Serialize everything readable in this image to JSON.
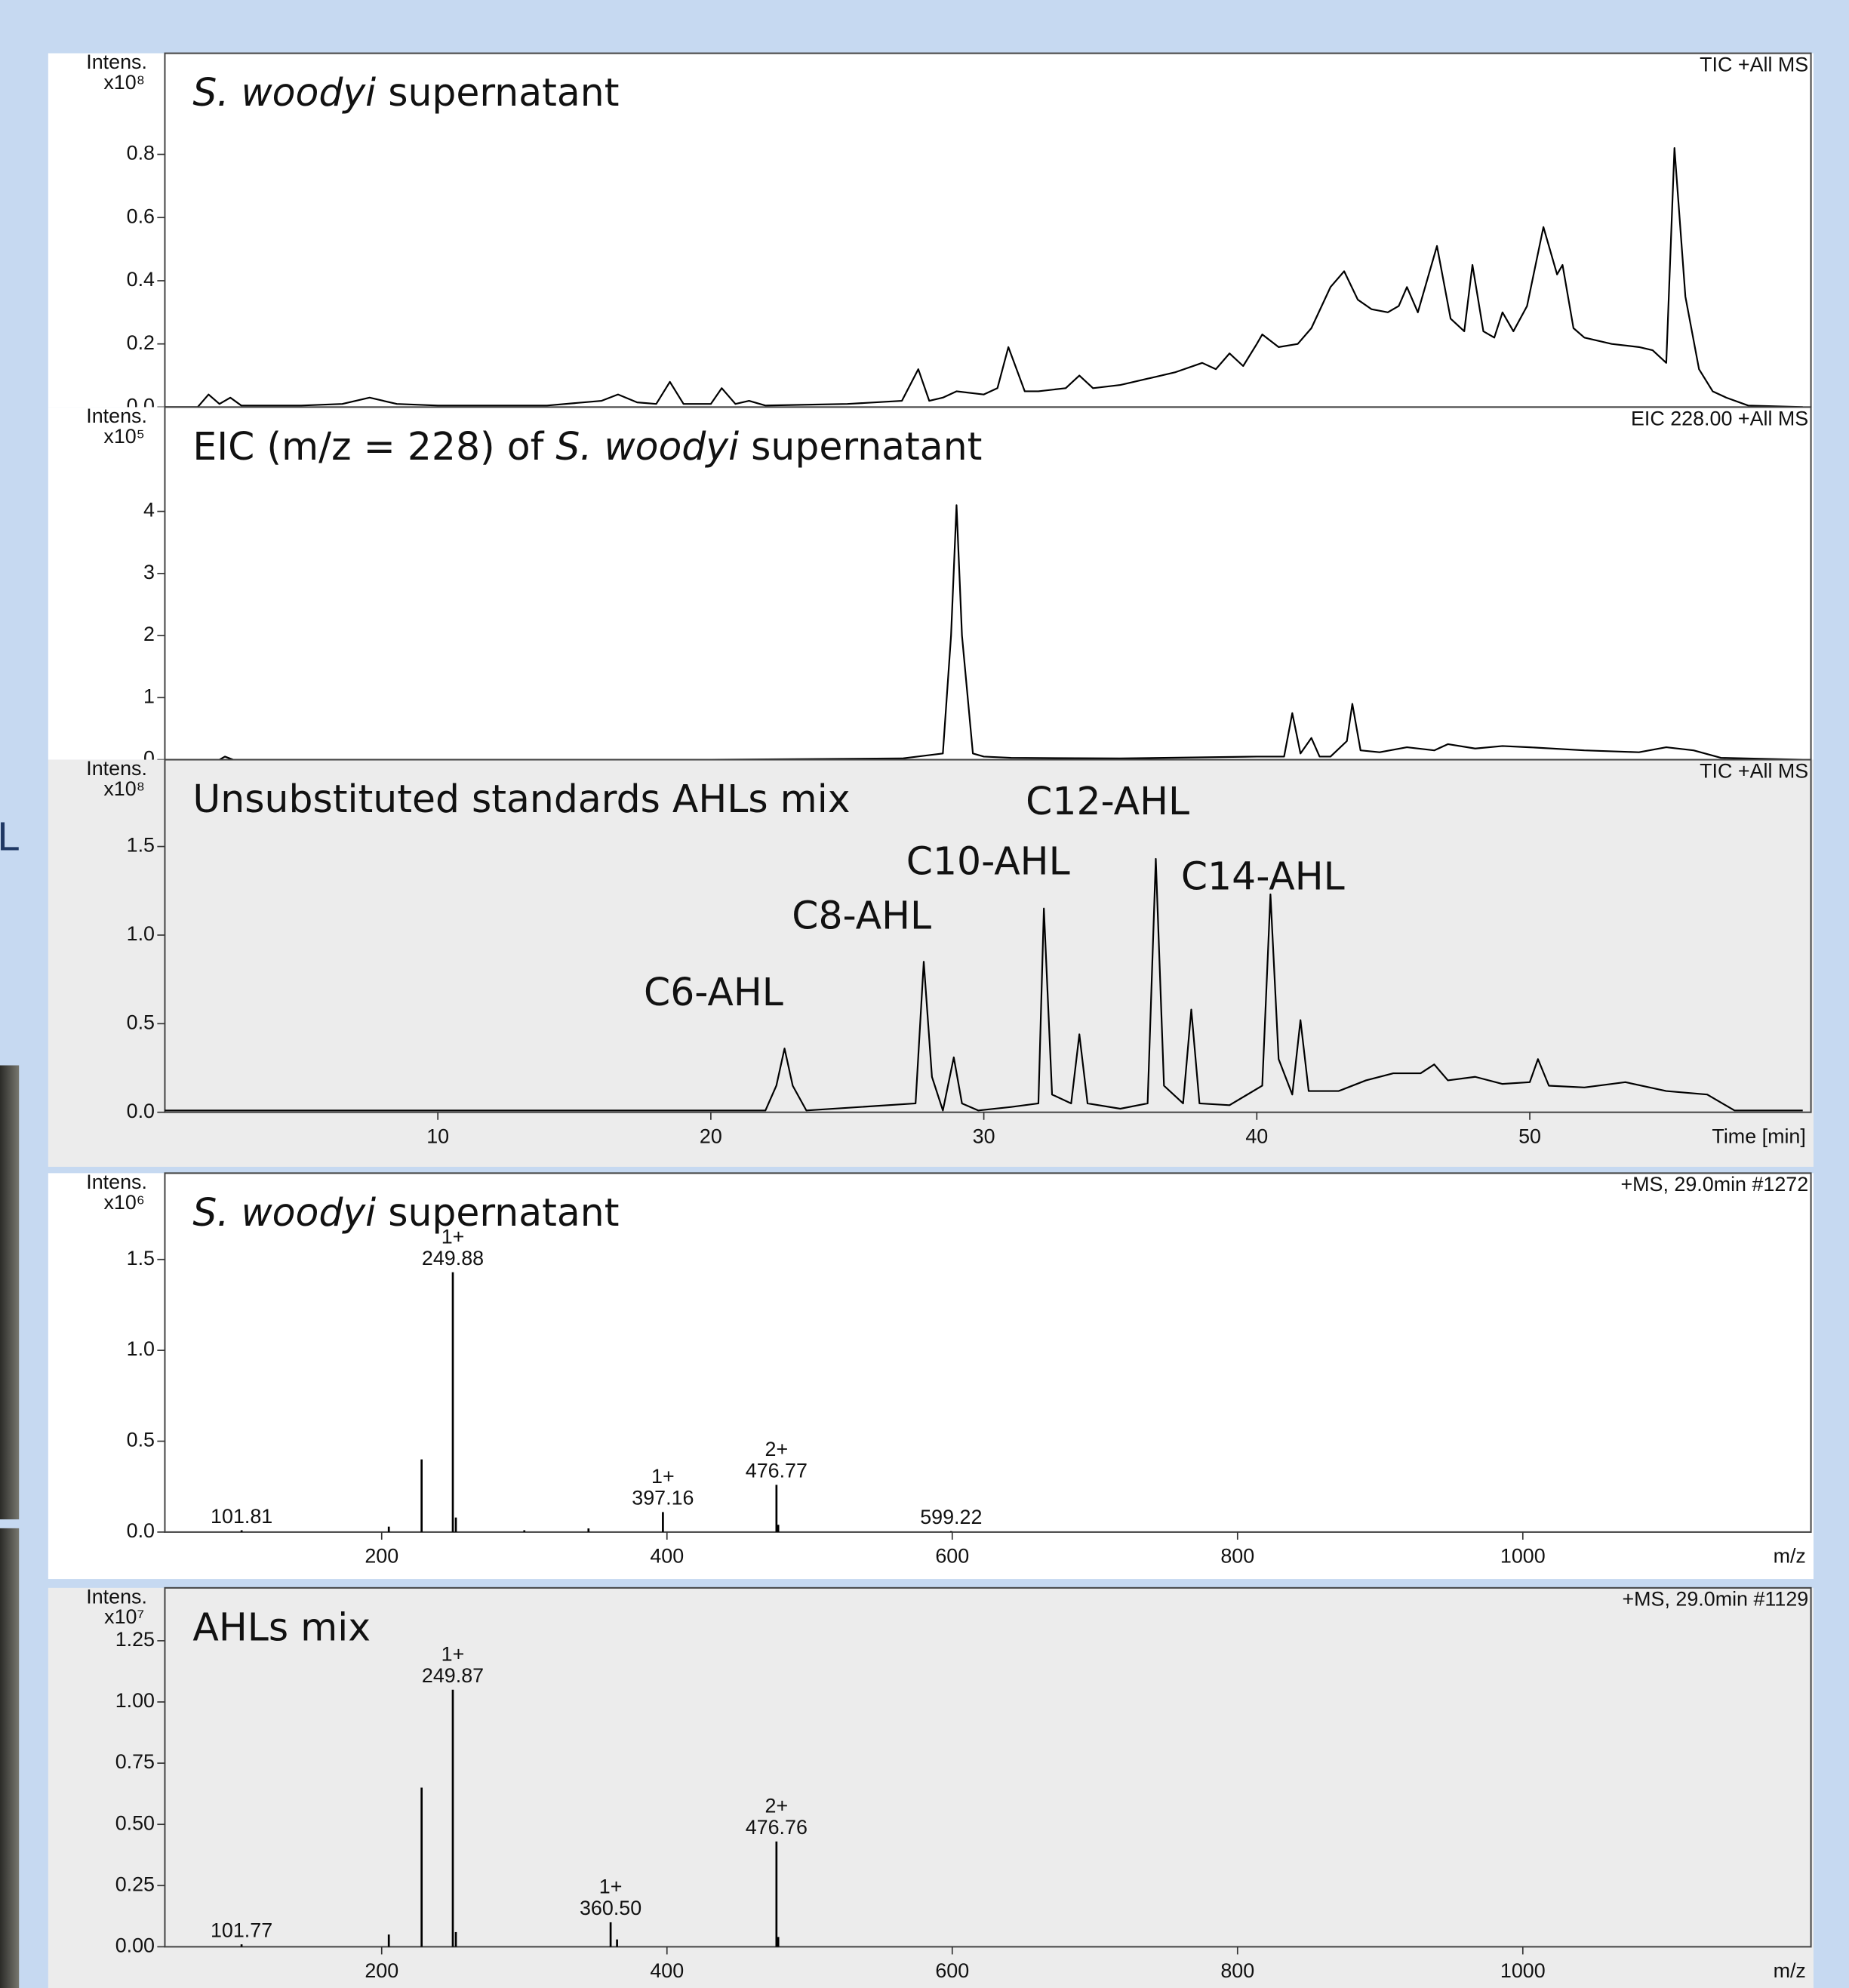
{
  "side_text": "L",
  "chart_data": [
    {
      "type": "line",
      "title": [
        {
          "text": "S. woodyi",
          "italic": true
        },
        {
          "text": " supernatant"
        }
      ],
      "corner_label": "TIC +All MS",
      "y_label": "Intens.",
      "y_unit": "x10⁸",
      "xlim": [
        0,
        60.3
      ],
      "ylim": [
        0,
        1.12
      ],
      "yticks": [
        {
          "value": 0,
          "label": "0.0"
        },
        0.2,
        0.4,
        0.6,
        0.8
      ],
      "color": "#000000",
      "background": "#ffffff",
      "x": [
        0,
        1.2,
        1.6,
        2,
        2.4,
        2.8,
        3.5,
        5,
        6.5,
        7.5,
        8.5,
        10,
        14,
        16,
        16.6,
        17.3,
        18,
        18.5,
        19,
        20,
        20.4,
        20.9,
        21.4,
        22,
        25,
        27,
        27.6,
        28,
        28.5,
        29,
        30,
        30.5,
        30.9,
        31.5,
        32,
        33,
        33.5,
        34,
        35,
        36,
        37,
        38,
        38.5,
        39,
        39.5,
        40,
        40.2,
        40.8,
        41.5,
        42,
        42.7,
        43.2,
        43.7,
        44.2,
        44.8,
        45.2,
        45.5,
        45.9,
        46.1,
        46.6,
        47.1,
        47.6,
        47.9,
        48.3,
        48.7,
        49,
        49.4,
        49.9,
        50.5,
        51,
        51.2,
        51.6,
        52,
        53,
        54,
        54.5,
        55,
        55.3,
        55.7,
        56.2,
        56.7,
        57.2,
        58,
        60
      ],
      "values": [
        0,
        0,
        0.04,
        0.01,
        0.03,
        0.005,
        0.005,
        0.005,
        0.01,
        0.03,
        0.01,
        0.005,
        0.005,
        0.02,
        0.04,
        0.015,
        0.01,
        0.08,
        0.01,
        0.01,
        0.06,
        0.01,
        0.02,
        0.005,
        0.01,
        0.02,
        0.12,
        0.02,
        0.03,
        0.05,
        0.04,
        0.06,
        0.19,
        0.05,
        0.05,
        0.06,
        0.1,
        0.06,
        0.07,
        0.09,
        0.11,
        0.14,
        0.12,
        0.17,
        0.13,
        0.2,
        0.23,
        0.19,
        0.2,
        0.25,
        0.38,
        0.43,
        0.34,
        0.31,
        0.3,
        0.32,
        0.38,
        0.3,
        0.36,
        0.51,
        0.28,
        0.24,
        0.45,
        0.24,
        0.22,
        0.3,
        0.24,
        0.32,
        0.57,
        0.42,
        0.45,
        0.25,
        0.22,
        0.2,
        0.19,
        0.18,
        0.14,
        0.82,
        0.35,
        0.12,
        0.05,
        0.03,
        0.005,
        0
      ]
    },
    {
      "type": "line",
      "title": [
        {
          "text": "EIC (m/z = 228) of "
        },
        {
          "text": "S. woodyi",
          "italic": true
        },
        {
          "text": "  supernatant"
        }
      ],
      "corner_label": "EIC 228.00 +All MS",
      "y_label": "Intens.",
      "y_unit": "x10⁵",
      "xlim": [
        0,
        60.3
      ],
      "ylim": [
        0,
        5.68
      ],
      "yticks": [
        0,
        1,
        2,
        3,
        4
      ],
      "color": "#000000",
      "background": "#ffffff",
      "x": [
        0,
        2,
        2.2,
        2.5,
        10,
        20,
        27,
        28.5,
        28.8,
        29,
        29.2,
        29.6,
        30,
        31,
        35,
        40,
        41,
        41.3,
        41.6,
        42,
        42.3,
        42.7,
        43.3,
        43.5,
        43.8,
        44.5,
        45.5,
        46.5,
        47,
        48,
        49,
        50,
        52,
        54,
        55,
        56,
        57,
        60
      ],
      "values": [
        0,
        0,
        0.05,
        0,
        0,
        0,
        0.02,
        0.1,
        2,
        4.1,
        2,
        0.1,
        0.05,
        0.03,
        0.02,
        0.05,
        0.05,
        0.75,
        0.1,
        0.35,
        0.05,
        0.05,
        0.3,
        0.9,
        0.15,
        0.12,
        0.2,
        0.15,
        0.25,
        0.18,
        0.22,
        0.2,
        0.15,
        0.12,
        0.2,
        0.15,
        0.03,
        0
      ]
    },
    {
      "type": "line",
      "title": [
        {
          "text": "Unsubstituted standards AHLs mix"
        }
      ],
      "corner_label": "TIC +All MS",
      "y_label": "Intens.",
      "y_unit": "x10⁸",
      "x_label": "Time [min]",
      "xlim": [
        0,
        60.3
      ],
      "ylim": [
        0,
        1.99
      ],
      "xticks": [
        10,
        20,
        30,
        40,
        50
      ],
      "yticks": [
        {
          "value": 0,
          "label": "0.0"
        },
        0.5,
        {
          "value": 1,
          "label": "1.0"
        },
        1.5
      ],
      "color": "#000000",
      "background": "#ececec",
      "x": [
        0,
        2,
        10,
        17,
        22,
        22.4,
        22.7,
        23,
        23.5,
        27.5,
        27.8,
        28.1,
        28.5,
        28.9,
        29.2,
        29.8,
        31,
        32,
        32.2,
        32.5,
        33.2,
        33.5,
        33.8,
        35,
        36,
        36.3,
        36.6,
        37.3,
        37.6,
        37.9,
        39,
        40.2,
        40.5,
        40.8,
        41.3,
        41.6,
        41.9,
        43,
        44,
        45,
        46,
        46.5,
        47,
        48,
        49,
        50,
        50.3,
        50.7,
        52,
        53.5,
        55,
        56.5,
        57.5,
        60
      ],
      "values": [
        0.01,
        0.01,
        0.01,
        0.01,
        0.01,
        0.15,
        0.36,
        0.15,
        0.01,
        0.05,
        0.85,
        0.2,
        0.01,
        0.31,
        0.05,
        0.01,
        0.03,
        0.05,
        1.15,
        0.1,
        0.05,
        0.44,
        0.05,
        0.02,
        0.05,
        1.43,
        0.15,
        0.05,
        0.58,
        0.05,
        0.04,
        0.15,
        1.23,
        0.3,
        0.1,
        0.52,
        0.12,
        0.12,
        0.18,
        0.22,
        0.22,
        0.27,
        0.18,
        0.2,
        0.16,
        0.17,
        0.3,
        0.15,
        0.14,
        0.17,
        0.12,
        0.1,
        0.01,
        0.01
      ],
      "annotations": [
        {
          "text": "C6-AHL",
          "x": 22.7
        },
        {
          "text": "C8-AHL",
          "x": 27.8
        },
        {
          "text": "C10-AHL",
          "x": 32.2
        },
        {
          "text": "C12-AHL",
          "x": 36.3
        },
        {
          "text": "C14-AHL",
          "x": 40.5
        }
      ]
    },
    {
      "type": "spectrum",
      "title": [
        {
          "text": "S. woodyi",
          "italic": true
        },
        {
          "text": " supernatant"
        }
      ],
      "corner_label": "+MS, 29.0min #1272",
      "y_label": "Intens.",
      "y_unit": "x10⁶",
      "x_label": "m/z",
      "xlim": [
        48,
        1202
      ],
      "ylim": [
        0,
        1.975
      ],
      "xticks": [
        200,
        400,
        600,
        800,
        1000
      ],
      "yticks": [
        {
          "value": 0,
          "label": "0.0"
        },
        0.5,
        {
          "value": 1,
          "label": "1.0"
        },
        1.5
      ],
      "color": "#000000",
      "background": "#ffffff",
      "x": [
        101.81,
        205,
        228,
        249.88,
        252,
        300,
        345,
        397.16,
        476.77,
        478,
        599.22
      ],
      "values": [
        0.01,
        0.03,
        0.4,
        1.43,
        0.08,
        0.01,
        0.02,
        0.11,
        0.26,
        0.04,
        0.005
      ],
      "annotations": [
        {
          "x": 101.81,
          "label": "101.81"
        },
        {
          "x": 249.88,
          "label": "249.88",
          "charge": "1+"
        },
        {
          "x": 397.16,
          "label": "397.16",
          "charge": "1+"
        },
        {
          "x": 476.77,
          "label": "476.77",
          "charge": "2+"
        },
        {
          "x": 599.22,
          "label": "599.22"
        }
      ]
    },
    {
      "type": "spectrum",
      "title": [
        {
          "text": "AHLs mix"
        }
      ],
      "corner_label": "+MS, 29.0min #1129",
      "y_label": "Intens.",
      "y_unit": "x10⁷",
      "x_label": "m/z",
      "xlim": [
        48,
        1202
      ],
      "ylim": [
        0,
        1.466
      ],
      "xticks": [
        200,
        400,
        600,
        800,
        1000
      ],
      "yticks": [
        {
          "value": 0,
          "label": "0.00"
        },
        0.25,
        {
          "value": 0.5,
          "label": "0.50"
        },
        0.75,
        {
          "value": 1,
          "label": "1.00"
        },
        1.25
      ],
      "color": "#000000",
      "background": "#ececec",
      "x": [
        101.77,
        205,
        228,
        249.87,
        252,
        360.5,
        365,
        476.76,
        478
      ],
      "values": [
        0.01,
        0.05,
        0.65,
        1.05,
        0.06,
        0.1,
        0.03,
        0.43,
        0.04
      ],
      "annotations": [
        {
          "x": 101.77,
          "label": "101.77"
        },
        {
          "x": 249.87,
          "label": "249.87",
          "charge": "1+"
        },
        {
          "x": 360.5,
          "label": "360.50",
          "charge": "1+"
        },
        {
          "x": 476.76,
          "label": "476.76",
          "charge": "2+"
        }
      ]
    }
  ]
}
